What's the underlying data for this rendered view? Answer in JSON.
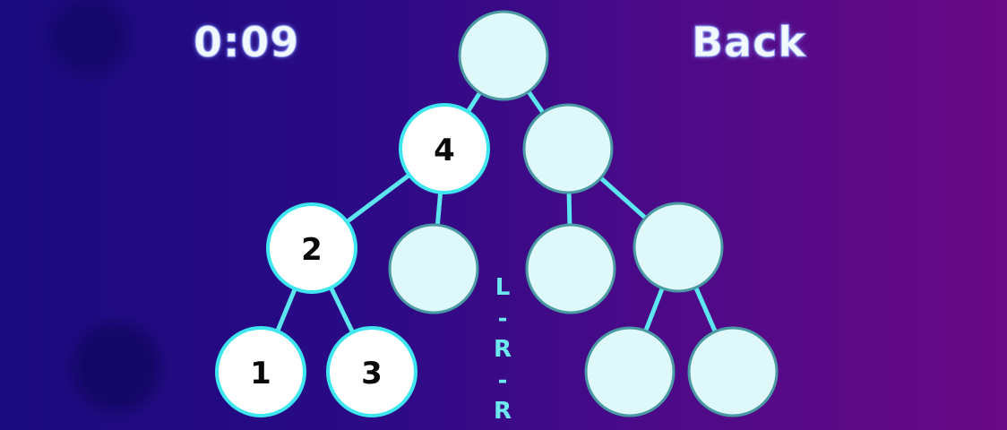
{
  "hud": {
    "timer": "0:09",
    "back_label": "Back"
  },
  "tree": {
    "nodes": [
      {
        "id": "root",
        "value": ""
      },
      {
        "id": "l",
        "value": "4"
      },
      {
        "id": "r",
        "value": ""
      },
      {
        "id": "ll",
        "value": "2"
      },
      {
        "id": "lr",
        "value": ""
      },
      {
        "id": "rl",
        "value": ""
      },
      {
        "id": "rr",
        "value": ""
      },
      {
        "id": "lll",
        "value": "1"
      },
      {
        "id": "llr",
        "value": "3"
      },
      {
        "id": "rrl",
        "value": ""
      },
      {
        "id": "rrr",
        "value": ""
      }
    ]
  },
  "path_hint": [
    "L",
    "-",
    "R",
    "-",
    "R"
  ]
}
